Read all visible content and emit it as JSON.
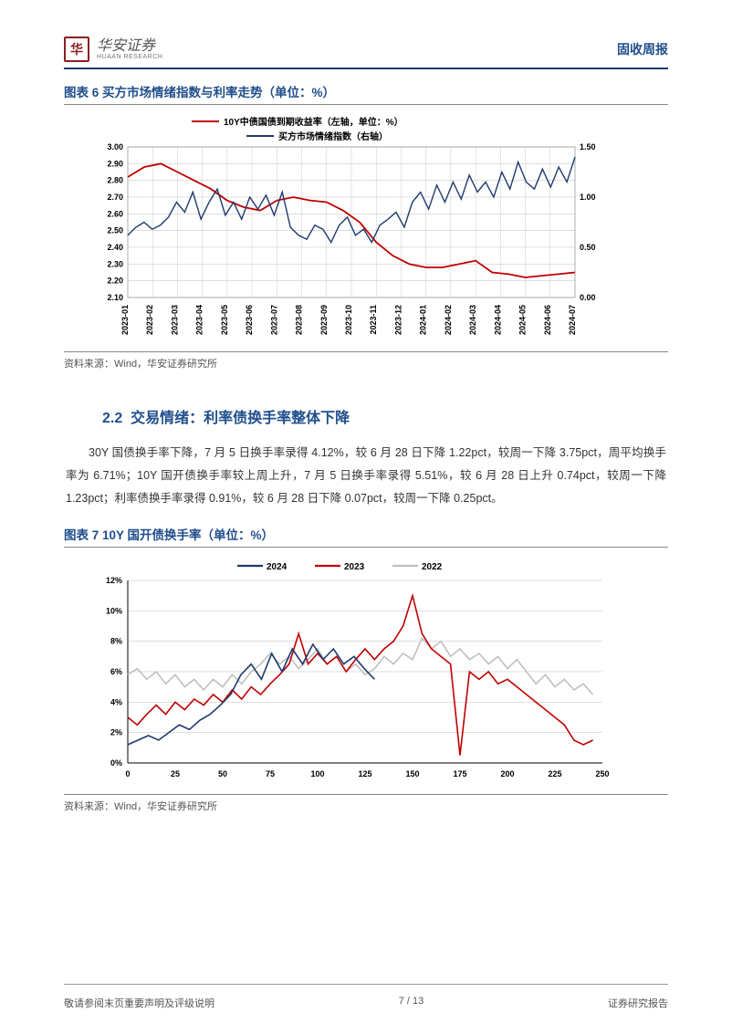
{
  "header": {
    "logo_cn": "华安证券",
    "logo_en": "HUAAN RESEARCH",
    "right_label": "固收周报"
  },
  "chart6": {
    "title": "图表 6 买方市场情绪指数与利率走势（单位：%）",
    "type": "line",
    "legend": {
      "series1": {
        "label": "10Y中债国债到期收益率（左轴，单位：%）",
        "color": "#c00000"
      },
      "series2": {
        "label": "买方市场情绪指数（右轴）",
        "color": "#1f3a6e"
      }
    },
    "x_labels": [
      "2023-01",
      "2023-02",
      "2023-03",
      "2023-04",
      "2023-05",
      "2023-06",
      "2023-07",
      "2023-08",
      "2023-09",
      "2023-10",
      "2023-11",
      "2023-12",
      "2024-01",
      "2024-02",
      "2024-03",
      "2024-04",
      "2024-05",
      "2024-06",
      "2024-07"
    ],
    "left_axis": {
      "min": 2.1,
      "max": 3.0,
      "step": 0.1,
      "ticks": [
        "3.00",
        "2.90",
        "2.80",
        "2.70",
        "2.60",
        "2.50",
        "2.40",
        "2.30",
        "2.20",
        "2.10"
      ]
    },
    "right_axis": {
      "min": 0.0,
      "max": 1.5,
      "step": 0.5,
      "ticks": [
        "1.50",
        "1.00",
        "0.50",
        "0.00"
      ]
    },
    "series1_values": [
      2.82,
      2.88,
      2.9,
      2.85,
      2.8,
      2.75,
      2.68,
      2.64,
      2.62,
      2.68,
      2.7,
      2.68,
      2.67,
      2.62,
      2.55,
      2.43,
      2.35,
      2.3,
      2.28,
      2.28,
      2.3,
      2.32,
      2.25,
      2.24,
      2.22,
      2.23,
      2.24,
      2.25
    ],
    "series2_values": [
      0.62,
      0.7,
      0.75,
      0.68,
      0.72,
      0.8,
      0.95,
      0.85,
      1.05,
      0.78,
      0.95,
      1.08,
      0.82,
      0.95,
      0.78,
      1.0,
      0.88,
      1.02,
      0.82,
      1.05,
      0.7,
      0.62,
      0.58,
      0.72,
      0.68,
      0.55,
      0.72,
      0.8,
      0.62,
      0.68,
      0.55,
      0.72,
      0.78,
      0.85,
      0.7,
      0.95,
      1.05,
      0.88,
      1.12,
      0.95,
      1.15,
      0.98,
      1.22,
      1.05,
      1.15,
      1.0,
      1.25,
      1.08,
      1.35,
      1.15,
      1.08,
      1.28,
      1.1,
      1.3,
      1.15,
      1.4
    ],
    "background_color": "#ffffff",
    "grid_color": "#bfbfbf",
    "axis_fontsize": 9,
    "legend_fontsize": 10,
    "source": "资料来源：Wind，华安证券研究所"
  },
  "section": {
    "number": "2.2",
    "title": "交易情绪：利率债换手率整体下降",
    "body": "30Y 国债换手率下降，7 月 5 日换手率录得 4.12%，较 6 月 28 日下降 1.22pct，较周一下降 3.75pct，周平均换手率为 6.71%；10Y 国开债换手率较上周上升，7 月 5 日换手率录得 5.51%，较 6 月 28 日上升 0.74pct，较周一下降 1.23pct；利率债换手率录得 0.91%，较 6 月 28 日下降 0.07pct，较周一下降 0.25pct。"
  },
  "chart7": {
    "title": "图表 7 10Y 国开债换手率（单位：%）",
    "type": "line",
    "legend": {
      "s2024": {
        "label": "2024",
        "color": "#1f3a6e"
      },
      "s2023": {
        "label": "2023",
        "color": "#c00000"
      },
      "s2022": {
        "label": "2022",
        "color": "#bfbfbf"
      }
    },
    "x_axis": {
      "min": 0,
      "max": 250,
      "step": 25,
      "ticks": [
        "0",
        "25",
        "50",
        "75",
        "100",
        "125",
        "150",
        "175",
        "200",
        "225",
        "250"
      ]
    },
    "y_axis": {
      "min": 0,
      "max": 12,
      "step": 2,
      "ticks": [
        "12%",
        "10%",
        "8%",
        "6%",
        "4%",
        "2%",
        "0%"
      ]
    },
    "series_2022": [
      5.8,
      6.2,
      5.5,
      6.0,
      5.2,
      5.8,
      5.0,
      5.5,
      4.8,
      5.5,
      5.0,
      5.8,
      5.2,
      6.0,
      6.5,
      7.2,
      6.5,
      7.0,
      6.2,
      6.8,
      7.5,
      6.5,
      7.0,
      6.0,
      6.5,
      5.8,
      6.2,
      7.0,
      6.5,
      7.2,
      6.8,
      8.2,
      7.5,
      8.0,
      7.0,
      7.5,
      6.8,
      7.2,
      6.5,
      7.0,
      6.2,
      6.8,
      6.0,
      5.2,
      5.8,
      5.0,
      5.5,
      4.8,
      5.2,
      4.5
    ],
    "series_2023": [
      3.0,
      2.5,
      3.2,
      3.8,
      3.2,
      4.0,
      3.5,
      4.2,
      3.8,
      4.5,
      4.0,
      4.8,
      4.2,
      5.0,
      4.5,
      5.2,
      5.8,
      6.5,
      8.5,
      6.5,
      7.2,
      6.5,
      7.0,
      6.0,
      6.8,
      7.5,
      6.8,
      7.5,
      8.0,
      9.0,
      11.0,
      8.5,
      7.5,
      7.0,
      6.5,
      0.5,
      6.0,
      5.5,
      6.0,
      5.2,
      5.5,
      5.0,
      4.5,
      4.0,
      3.5,
      3.0,
      2.5,
      1.5,
      1.2,
      1.5
    ],
    "series_2024": [
      1.2,
      1.5,
      1.8,
      1.5,
      2.0,
      2.5,
      2.2,
      2.8,
      3.2,
      3.8,
      4.5,
      5.8,
      6.5,
      5.5,
      7.2,
      6.0,
      7.5,
      6.5,
      7.8,
      6.8,
      7.5,
      6.5,
      7.0,
      6.2,
      5.5
    ],
    "background_color": "#ffffff",
    "grid_color": "#bfbfbf",
    "axis_fontsize": 9,
    "legend_fontsize": 10,
    "source": "资料来源：Wind，华安证券研究所"
  },
  "footer": {
    "left": "敬请参阅末页重要声明及评级说明",
    "center": "7 / 13",
    "right": "证券研究报告"
  }
}
